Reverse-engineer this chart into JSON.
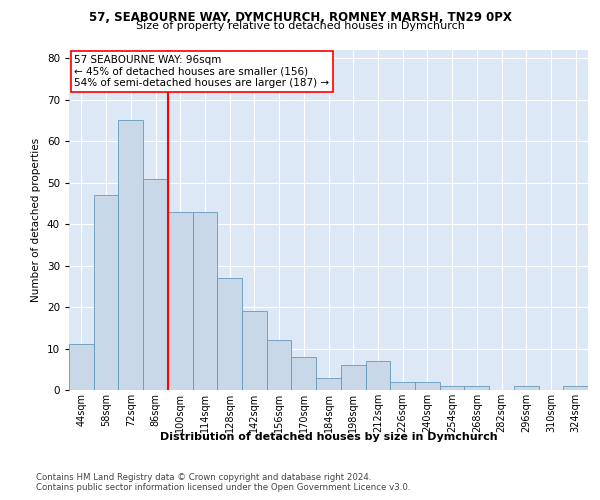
{
  "title_line1": "57, SEABOURNE WAY, DYMCHURCH, ROMNEY MARSH, TN29 0PX",
  "title_line2": "Size of property relative to detached houses in Dymchurch",
  "xlabel": "Distribution of detached houses by size in Dymchurch",
  "ylabel": "Number of detached properties",
  "categories": [
    "44sqm",
    "58sqm",
    "72sqm",
    "86sqm",
    "100sqm",
    "114sqm",
    "128sqm",
    "142sqm",
    "156sqm",
    "170sqm",
    "184sqm",
    "198sqm",
    "212sqm",
    "226sqm",
    "240sqm",
    "254sqm",
    "268sqm",
    "282sqm",
    "296sqm",
    "310sqm",
    "324sqm"
  ],
  "bar_values": [
    11,
    47,
    65,
    51,
    43,
    43,
    27,
    19,
    12,
    8,
    3,
    6,
    7,
    2,
    2,
    1,
    1,
    0,
    1,
    0,
    1
  ],
  "bar_color": "#c8d8e8",
  "bar_edge_color": "#6699bb",
  "vline_position": 3.5,
  "vline_color": "red",
  "annotation_text": "57 SEABOURNE WAY: 96sqm\n← 45% of detached houses are smaller (156)\n54% of semi-detached houses are larger (187) →",
  "ylim": [
    0,
    82
  ],
  "yticks": [
    0,
    10,
    20,
    30,
    40,
    50,
    60,
    70,
    80
  ],
  "footer": "Contains HM Land Registry data © Crown copyright and database right 2024.\nContains public sector information licensed under the Open Government Licence v3.0.",
  "bg_color": "#dce8f5",
  "grid_color": "white"
}
